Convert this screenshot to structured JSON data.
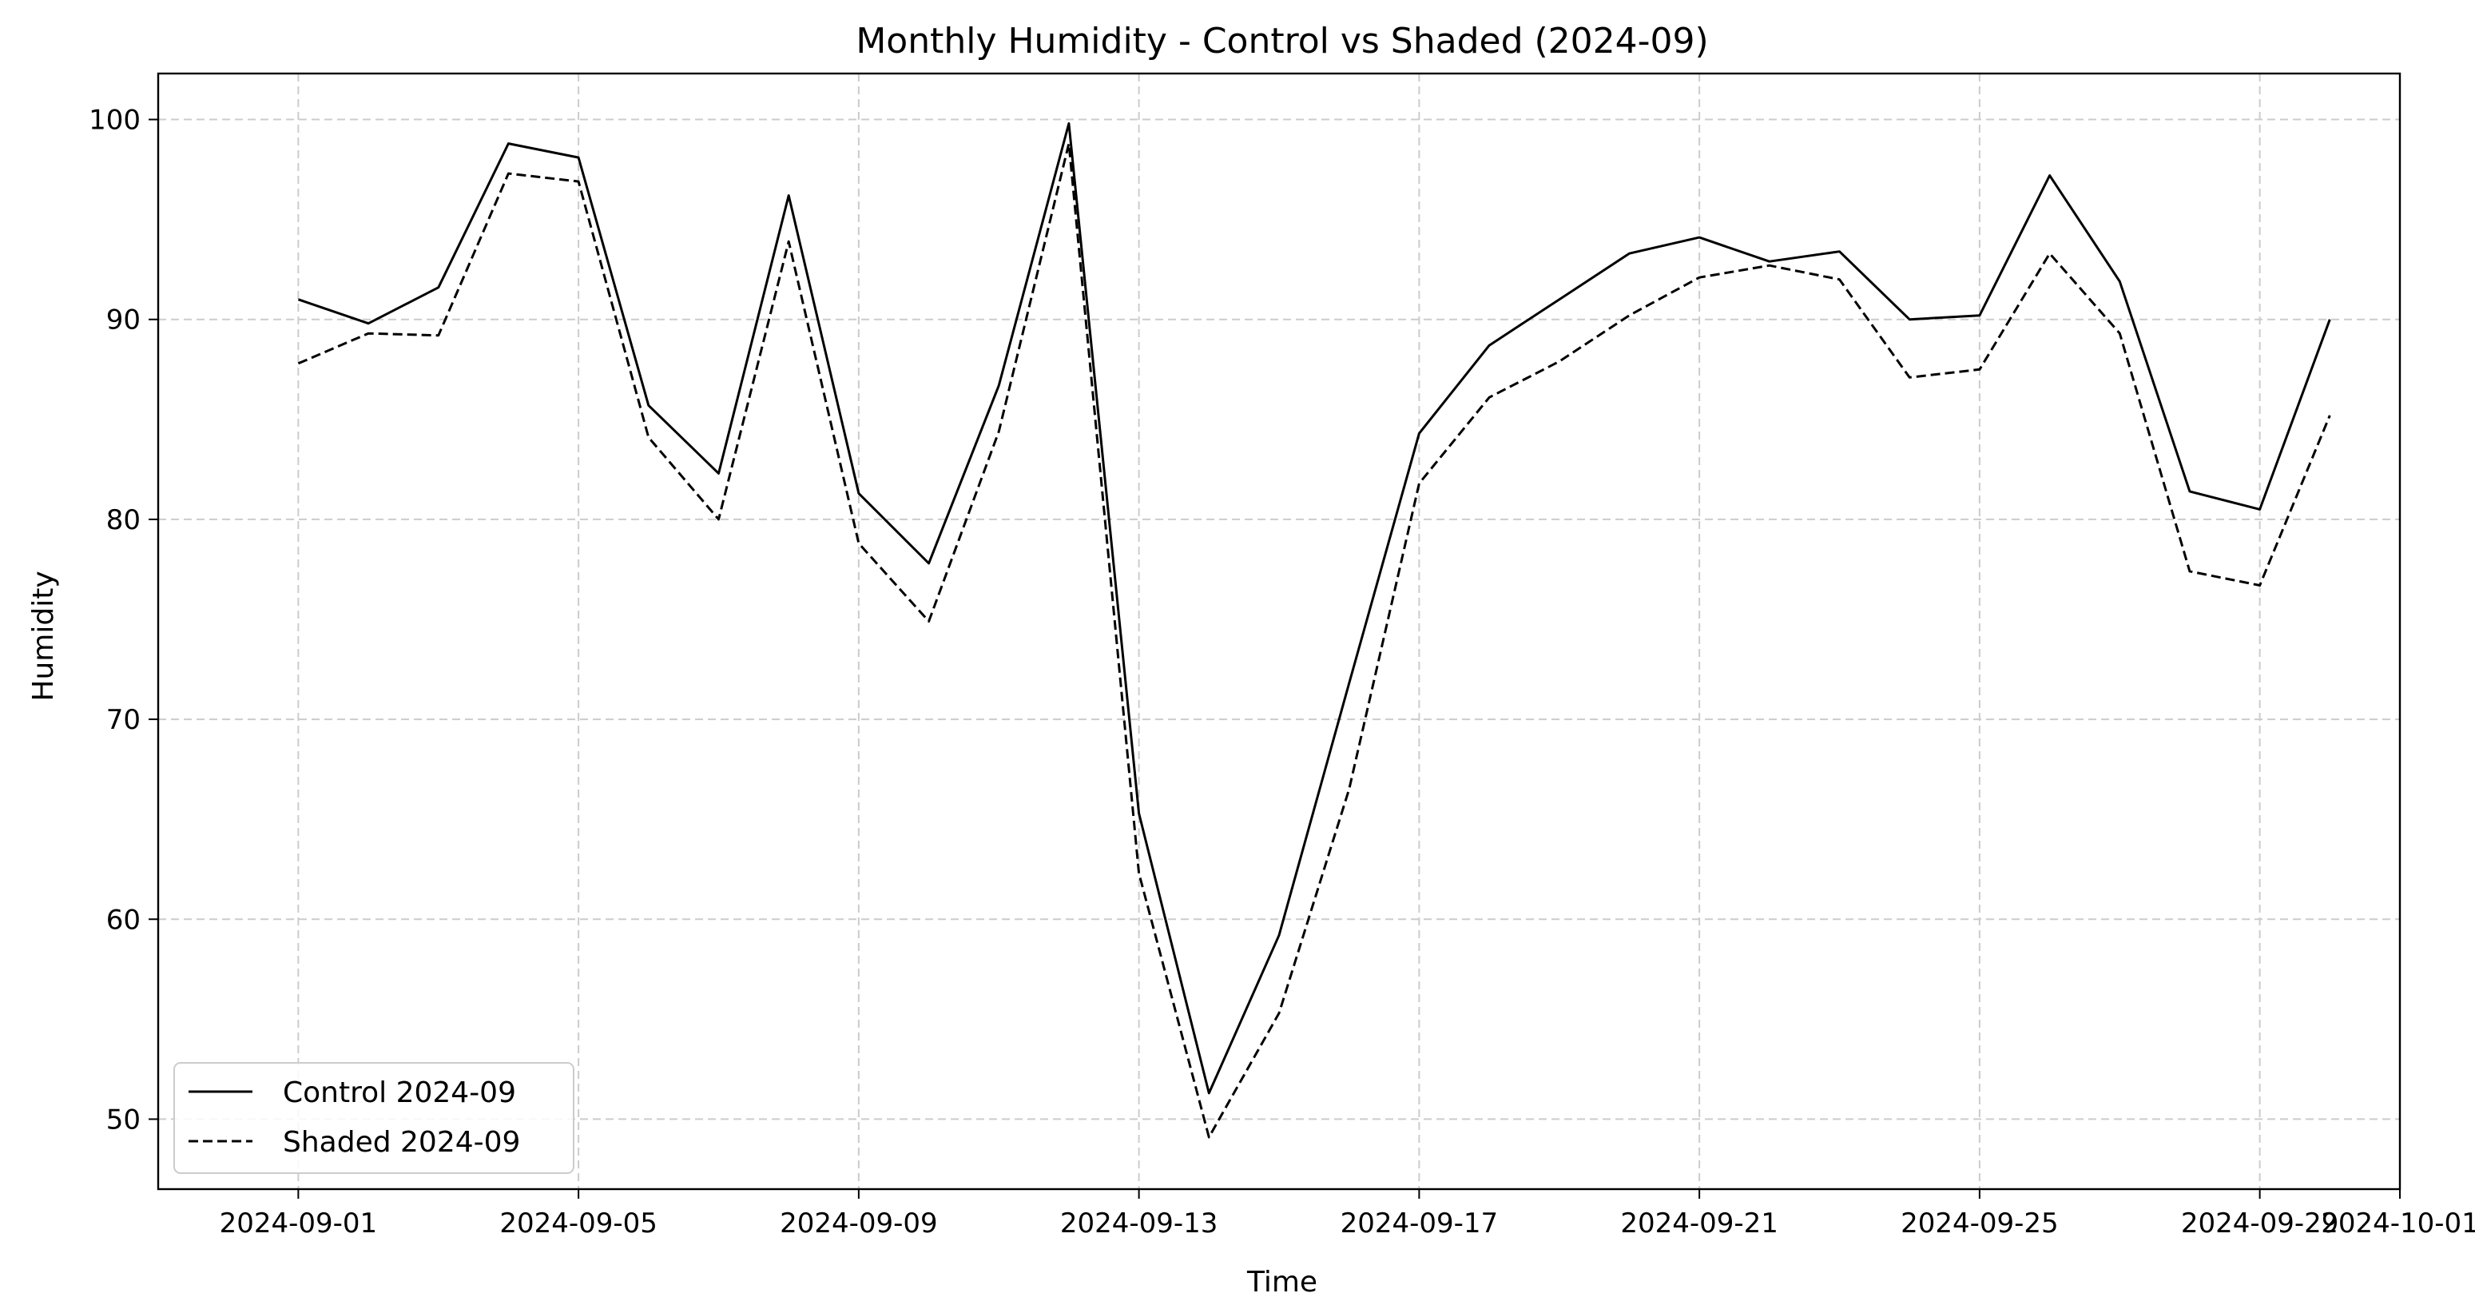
{
  "chart_data": {
    "type": "line",
    "title": "Monthly Humidity - Control vs Shaded (2024-09)",
    "xlabel": "Time",
    "ylabel": "Humidity",
    "x": [
      "2024-09-01",
      "2024-09-02",
      "2024-09-03",
      "2024-09-04",
      "2024-09-05",
      "2024-09-06",
      "2024-09-07",
      "2024-09-08",
      "2024-09-09",
      "2024-09-10",
      "2024-09-11",
      "2024-09-12",
      "2024-09-13",
      "2024-09-14",
      "2024-09-15",
      "2024-09-16",
      "2024-09-17",
      "2024-09-18",
      "2024-09-19",
      "2024-09-20",
      "2024-09-21",
      "2024-09-22",
      "2024-09-23",
      "2024-09-24",
      "2024-09-25",
      "2024-09-26",
      "2024-09-27",
      "2024-09-28",
      "2024-09-29",
      "2024-09-30"
    ],
    "series": [
      {
        "name": "Control 2024-09",
        "line_style": "solid",
        "color": "#000000",
        "values": [
          91.0,
          89.8,
          91.6,
          98.8,
          98.1,
          85.7,
          82.3,
          96.2,
          81.3,
          77.8,
          86.7,
          99.8,
          65.3,
          51.3,
          59.2,
          71.8,
          84.3,
          88.7,
          91.0,
          93.3,
          94.1,
          92.9,
          93.4,
          90.0,
          90.2,
          97.2,
          91.9,
          81.4,
          80.5,
          90.0
        ]
      },
      {
        "name": "Shaded 2024-09",
        "line_style": "dashed",
        "color": "#000000",
        "values": [
          87.8,
          89.3,
          89.2,
          97.3,
          96.9,
          84.1,
          80.0,
          93.9,
          78.8,
          74.9,
          84.4,
          98.8,
          62.3,
          49.1,
          55.3,
          66.5,
          81.8,
          86.1,
          87.9,
          90.2,
          92.1,
          92.7,
          92.0,
          87.1,
          87.5,
          93.3,
          89.3,
          77.4,
          76.7,
          85.2
        ]
      }
    ],
    "x_ticks": [
      "2024-09-01",
      "2024-09-05",
      "2024-09-09",
      "2024-09-13",
      "2024-09-17",
      "2024-09-21",
      "2024-09-25",
      "2024-09-29",
      "2024-10-01"
    ],
    "y_ticks": [
      50,
      60,
      70,
      80,
      90,
      100
    ],
    "xlim": [
      "2024-08-30",
      "2024-10-01"
    ],
    "ylim": [
      46.5,
      102.3
    ],
    "grid": true,
    "grid_style": "dashed",
    "legend_position": "lower-left"
  }
}
